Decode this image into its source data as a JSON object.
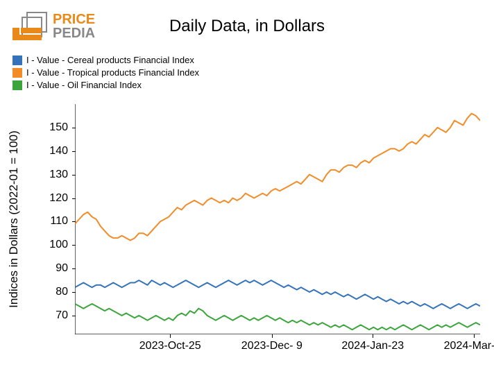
{
  "logo": {
    "top_text": "PRICE",
    "bottom_text": "PEDIA",
    "bar_color": "#e8891a",
    "outline_color": "#888888"
  },
  "title": "Daily Data, in Dollars",
  "y_axis_label": "Indices in Dollars (2022-01 = 100)",
  "legend": [
    {
      "color": "#3573b9",
      "label": "I - Value - Cereal products Financial Index"
    },
    {
      "color": "#f28c28",
      "label": "I - Value - Tropical products Financial Index"
    },
    {
      "color": "#3ca43c",
      "label": "I - Value - Oil Financial Index"
    }
  ],
  "chart": {
    "background_color": "#ffffff",
    "axis_color": "#000000",
    "line_width": 2,
    "y_ticks": [
      70,
      80,
      90,
      100,
      110,
      120,
      130,
      140,
      150
    ],
    "ylim": [
      62,
      160
    ],
    "x_ticks": [
      {
        "pos": 0.235,
        "label": "2023-Oct-25"
      },
      {
        "pos": 0.486,
        "label": "2023-Dec- 9"
      },
      {
        "pos": 0.735,
        "label": "2024-Jan-23"
      },
      {
        "pos": 0.985,
        "label": "2024-Mar- 8"
      }
    ],
    "series": [
      {
        "color": "#f28c28",
        "data": [
          109,
          111,
          113,
          114,
          112,
          111,
          108,
          106,
          104,
          103,
          103,
          104,
          103,
          102,
          103,
          105,
          105,
          104,
          106,
          108,
          110,
          111,
          112,
          114,
          116,
          115,
          117,
          118,
          119,
          118,
          117,
          119,
          120,
          119,
          118,
          119,
          118,
          120,
          119,
          120,
          122,
          121,
          120,
          121,
          122,
          121,
          123,
          124,
          123,
          124,
          125,
          126,
          127,
          126,
          128,
          130,
          129,
          128,
          127,
          130,
          132,
          132,
          131,
          133,
          134,
          134,
          133,
          135,
          136,
          135,
          137,
          138,
          139,
          140,
          141,
          141,
          140,
          141,
          143,
          144,
          143,
          145,
          147,
          146,
          148,
          150,
          149,
          148,
          150,
          153,
          152,
          151,
          154,
          156,
          155,
          153
        ]
      },
      {
        "color": "#3573b9",
        "data": [
          82,
          83,
          84,
          83,
          82,
          83,
          83,
          82,
          83,
          84,
          83,
          82,
          83,
          84,
          84,
          85,
          84,
          83,
          85,
          84,
          83,
          84,
          83,
          82,
          83,
          84,
          85,
          84,
          83,
          82,
          83,
          84,
          83,
          82,
          83,
          84,
          85,
          84,
          83,
          84,
          85,
          84,
          85,
          84,
          83,
          84,
          85,
          84,
          83,
          82,
          83,
          82,
          81,
          82,
          81,
          80,
          81,
          80,
          79,
          80,
          79,
          80,
          79,
          78,
          79,
          78,
          77,
          78,
          79,
          78,
          77,
          78,
          77,
          76,
          77,
          76,
          75,
          76,
          75,
          76,
          75,
          74,
          75,
          74,
          73,
          74,
          75,
          74,
          73,
          74,
          75,
          74,
          73,
          74,
          75,
          74
        ]
      },
      {
        "color": "#3ca43c",
        "data": [
          75,
          74,
          73,
          74,
          75,
          74,
          73,
          72,
          73,
          72,
          71,
          70,
          71,
          70,
          69,
          70,
          69,
          68,
          69,
          70,
          69,
          68,
          69,
          68,
          70,
          71,
          70,
          72,
          71,
          73,
          72,
          70,
          69,
          68,
          69,
          70,
          69,
          68,
          69,
          70,
          69,
          68,
          69,
          68,
          69,
          70,
          69,
          68,
          69,
          68,
          67,
          68,
          67,
          68,
          67,
          66,
          67,
          66,
          67,
          66,
          65,
          66,
          65,
          66,
          65,
          64,
          65,
          66,
          65,
          64,
          65,
          64,
          65,
          64,
          65,
          64,
          65,
          66,
          65,
          64,
          65,
          66,
          65,
          64,
          65,
          66,
          65,
          66,
          65,
          66,
          67,
          66,
          65,
          66,
          67,
          66
        ]
      }
    ]
  }
}
